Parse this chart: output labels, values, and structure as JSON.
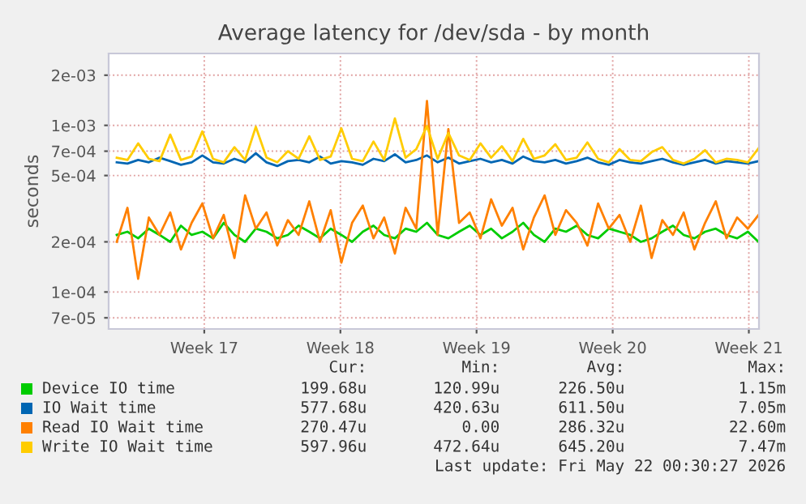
{
  "chart_data": {
    "type": "line",
    "title": "Average latency for /dev/sda - by month",
    "ylabel": "seconds",
    "log": "y",
    "grid": true,
    "legend": "bottom",
    "line_style": "solid",
    "marker": "none",
    "x": [
      "2026-04-19T00:00",
      "2026-04-19T13:12",
      "2026-04-20T02:24",
      "2026-04-20T15:36",
      "2026-04-21T04:48",
      "2026-04-21T18:00",
      "2026-04-22T07:12",
      "2026-04-22T20:24",
      "2026-04-23T09:36",
      "2026-04-23T22:48",
      "2026-04-24T12:00",
      "2026-04-25T01:12",
      "2026-04-25T14:24",
      "2026-04-26T03:36",
      "2026-04-26T16:48",
      "2026-04-27T06:00",
      "2026-04-27T19:12",
      "2026-04-28T08:24",
      "2026-04-28T21:36",
      "2026-04-29T10:48",
      "2026-04-30T00:00",
      "2026-04-30T13:12",
      "2026-05-01T02:24",
      "2026-05-01T15:36",
      "2026-05-02T04:48",
      "2026-05-02T18:00",
      "2026-05-03T07:12",
      "2026-05-03T20:24",
      "2026-05-04T09:36",
      "2026-05-04T22:48",
      "2026-05-05T12:00",
      "2026-05-06T01:12",
      "2026-05-06T14:24",
      "2026-05-07T03:36",
      "2026-05-07T16:48",
      "2026-05-08T06:00",
      "2026-05-08T19:12",
      "2026-05-09T08:24",
      "2026-05-09T21:36",
      "2026-05-10T10:48",
      "2026-05-11T00:00",
      "2026-05-11T13:12",
      "2026-05-12T02:24",
      "2026-05-12T15:36",
      "2026-05-13T04:48",
      "2026-05-13T18:00",
      "2026-05-14T07:12",
      "2026-05-14T20:24",
      "2026-05-15T09:36",
      "2026-05-15T22:48",
      "2026-05-16T12:00",
      "2026-05-17T01:12",
      "2026-05-17T14:24",
      "2026-05-18T03:36",
      "2026-05-18T16:48",
      "2026-05-19T06:00",
      "2026-05-19T19:12",
      "2026-05-20T08:24",
      "2026-05-20T21:36",
      "2026-05-21T10:48",
      "2026-05-22T00:00"
    ],
    "xlim": [
      "2026-04-18T14:00",
      "2026-05-22T00:30"
    ],
    "xticks": [
      {
        "value": "2026-04-23T12:00",
        "label": "Week 17"
      },
      {
        "value": "2026-04-30T12:00",
        "label": "Week 18"
      },
      {
        "value": "2026-05-07T12:00",
        "label": "Week 19"
      },
      {
        "value": "2026-05-14T12:00",
        "label": "Week 20"
      },
      {
        "value": "2026-05-21T12:00",
        "label": "Week 21"
      }
    ],
    "ylim": [
      6e-05,
      0.0027
    ],
    "yticks": [
      {
        "value": 7e-05,
        "label": "7e-05"
      },
      {
        "value": 0.0001,
        "label": "1e-04"
      },
      {
        "value": 0.0002,
        "label": "2e-04"
      },
      {
        "value": 0.0005,
        "label": "5e-04"
      },
      {
        "value": 0.0007,
        "label": "7e-04"
      },
      {
        "value": 0.001,
        "label": "1e-03"
      },
      {
        "value": 0.002,
        "label": "2e-03"
      }
    ],
    "series": [
      {
        "name": "Device IO time",
        "color": "#00cc00",
        "values": [
          0.00022,
          0.00023,
          0.00021,
          0.00024,
          0.00022,
          0.0002,
          0.00025,
          0.00022,
          0.00023,
          0.00021,
          0.00026,
          0.00022,
          0.0002,
          0.00024,
          0.00023,
          0.00021,
          0.00022,
          0.00025,
          0.00023,
          0.00021,
          0.00024,
          0.00022,
          0.0002,
          0.00023,
          0.00025,
          0.00022,
          0.00021,
          0.00024,
          0.00023,
          0.00026,
          0.00022,
          0.00021,
          0.00023,
          0.00025,
          0.00022,
          0.00024,
          0.00021,
          0.00023,
          0.00026,
          0.00022,
          0.0002,
          0.00024,
          0.00023,
          0.00025,
          0.00022,
          0.00021,
          0.00024,
          0.00023,
          0.00022,
          0.0002,
          0.00021,
          0.00023,
          0.00025,
          0.00022,
          0.00021,
          0.00023,
          0.00024,
          0.00022,
          0.00021,
          0.00023,
          0.0002
        ]
      },
      {
        "name": "IO Wait time",
        "color": "#0066b3",
        "values": [
          0.0006,
          0.00059,
          0.00062,
          0.0006,
          0.00064,
          0.00061,
          0.00058,
          0.0006,
          0.00066,
          0.0006,
          0.00059,
          0.00063,
          0.0006,
          0.00068,
          0.0006,
          0.00057,
          0.00061,
          0.00062,
          0.0006,
          0.00065,
          0.00059,
          0.00061,
          0.0006,
          0.00058,
          0.00063,
          0.00061,
          0.00067,
          0.0006,
          0.00062,
          0.00066,
          0.0006,
          0.00064,
          0.00059,
          0.00061,
          0.00063,
          0.0006,
          0.00062,
          0.00059,
          0.00065,
          0.00061,
          0.0006,
          0.00062,
          0.00059,
          0.00061,
          0.00064,
          0.0006,
          0.00058,
          0.00062,
          0.0006,
          0.00059,
          0.00061,
          0.00063,
          0.0006,
          0.00058,
          0.0006,
          0.00062,
          0.00059,
          0.00061,
          0.0006,
          0.00059,
          0.00061
        ]
      },
      {
        "name": "Read IO Wait time",
        "color": "#ff8000",
        "values": [
          0.0002,
          0.00032,
          0.00012,
          0.00028,
          0.00022,
          0.0003,
          0.00018,
          0.00026,
          0.00034,
          0.00021,
          0.00029,
          0.00016,
          0.00038,
          0.00024,
          0.0003,
          0.00019,
          0.00027,
          0.00022,
          0.00035,
          0.0002,
          0.00031,
          0.00015,
          0.00026,
          0.00033,
          0.00021,
          0.00028,
          0.00017,
          0.00032,
          0.00024,
          0.0014,
          0.00022,
          0.00095,
          0.00026,
          0.0003,
          0.00021,
          0.00036,
          0.00025,
          0.00032,
          0.00018,
          0.00028,
          0.00038,
          0.00022,
          0.00031,
          0.00026,
          0.00019,
          0.00034,
          0.00024,
          0.00029,
          0.0002,
          0.00033,
          0.00016,
          0.00027,
          0.00022,
          0.0003,
          0.00018,
          0.00026,
          0.00035,
          0.00021,
          0.00028,
          0.00024,
          0.00029
        ]
      },
      {
        "name": "Write IO Wait time",
        "color": "#ffcc00",
        "values": [
          0.00064,
          0.00062,
          0.00078,
          0.00063,
          0.00061,
          0.00088,
          0.00062,
          0.00065,
          0.00092,
          0.00063,
          0.0006,
          0.00074,
          0.00062,
          0.00098,
          0.00064,
          0.0006,
          0.0007,
          0.00063,
          0.00086,
          0.00062,
          0.00065,
          0.00096,
          0.00063,
          0.00061,
          0.0008,
          0.00062,
          0.0011,
          0.00064,
          0.00072,
          0.00099,
          0.00063,
          0.0009,
          0.00066,
          0.00062,
          0.00078,
          0.00064,
          0.00075,
          0.00061,
          0.00083,
          0.00063,
          0.00066,
          0.00077,
          0.00062,
          0.00064,
          0.00079,
          0.00063,
          0.0006,
          0.00072,
          0.00062,
          0.00061,
          0.00069,
          0.00074,
          0.00062,
          0.00059,
          0.00063,
          0.00071,
          0.0006,
          0.00063,
          0.00062,
          0.0006,
          0.00073
        ]
      }
    ],
    "annotations": [
      "Cur:",
      "Min:",
      "Avg:",
      "Max:",
      "199.68u",
      "120.99u",
      "226.50u",
      "1.15m",
      "577.68u",
      "420.63u",
      "611.50u",
      "7.05m",
      "270.47u",
      "0.00",
      "286.32u",
      "22.60m",
      "597.96u",
      "472.64u",
      "645.20u",
      "7.47m",
      "Last update: Fri May 22 00:30:27 2026"
    ]
  }
}
